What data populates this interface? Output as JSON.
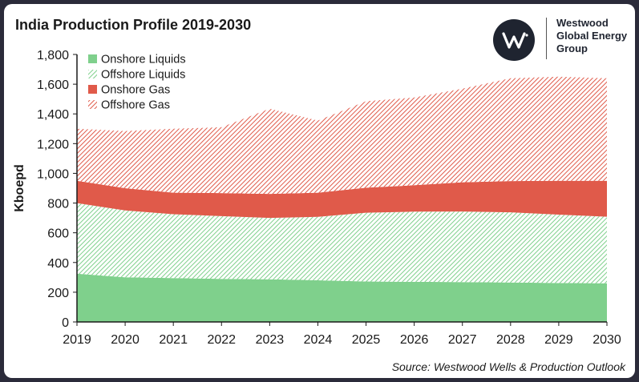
{
  "header": {
    "title": "India Production Profile 2019-2030",
    "logo_lines": [
      "Westwood",
      "Global Energy",
      "Group"
    ]
  },
  "footer": {
    "source": "Source: Westwood Wells & Production Outlook"
  },
  "colors": {
    "onshore_liquids": "#7fd08c",
    "offshore_liquids": "#7fd08c",
    "onshore_gas": "#e05a4a",
    "offshore_gas": "#e05a4a",
    "axis": "#1a1a1a"
  },
  "chart_data": {
    "type": "area",
    "stacked": true,
    "title": "India Production Profile 2019-2030",
    "xlabel": "",
    "ylabel": "Kboepd",
    "ylim": [
      0,
      1800
    ],
    "yticks": [
      0,
      200,
      400,
      600,
      800,
      1000,
      1200,
      1400,
      1600,
      1800
    ],
    "ytick_labels": [
      "0",
      "200",
      "400",
      "600",
      "800",
      "1,000",
      "1,200",
      "1,400",
      "1,600",
      "1,800"
    ],
    "categories": [
      "2019",
      "2020",
      "2021",
      "2022",
      "2023",
      "2024",
      "2025",
      "2026",
      "2027",
      "2028",
      "2029",
      "2030"
    ],
    "series": [
      {
        "name": "Onshore Liquids",
        "pattern": "solid",
        "values": [
          325,
          300,
          295,
          290,
          287,
          280,
          272,
          270,
          268,
          265,
          262,
          260
        ]
      },
      {
        "name": "Offshore Liquids",
        "pattern": "hatch",
        "values": [
          475,
          450,
          430,
          422,
          413,
          427,
          463,
          472,
          475,
          473,
          460,
          448
        ]
      },
      {
        "name": "Onshore Gas",
        "pattern": "solid",
        "values": [
          150,
          150,
          145,
          155,
          162,
          163,
          168,
          178,
          197,
          210,
          228,
          242
        ]
      },
      {
        "name": "Offshore Gas",
        "pattern": "hatch",
        "values": [
          350,
          385,
          430,
          443,
          573,
          485,
          582,
          590,
          630,
          692,
          700,
          690
        ]
      }
    ],
    "legend_position": "top-left"
  }
}
